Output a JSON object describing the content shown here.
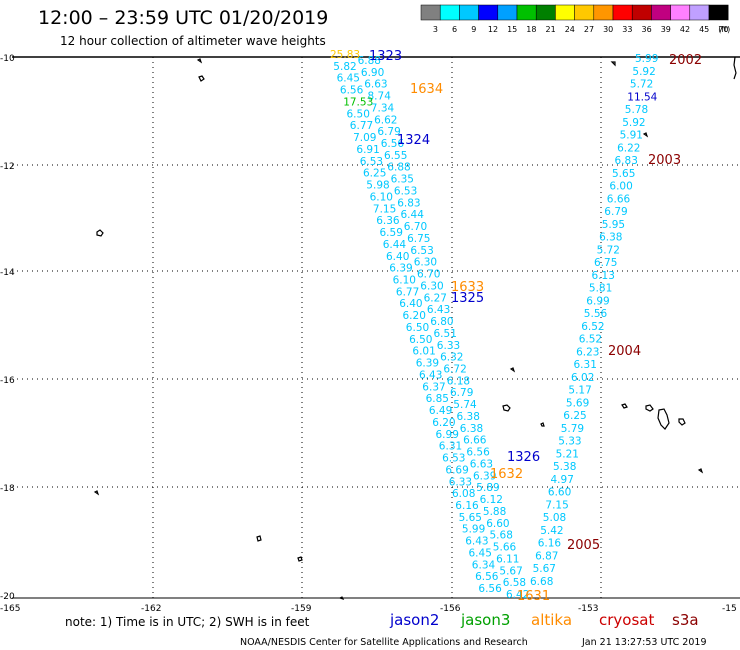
{
  "header": {
    "title": "12:00 – 23:59 UTC 01/20/2019",
    "subtitle": "12 hour collection of altimeter wave heights"
  },
  "colorbar": {
    "unit": "(ft)",
    "labels": [
      "3",
      "6",
      "9",
      "12",
      "15",
      "18",
      "21",
      "24",
      "27",
      "30",
      "33",
      "36",
      "39",
      "42",
      "45",
      "70"
    ],
    "colors": [
      "#808080",
      "#00ffff",
      "#00c8ff",
      "#0000ff",
      "#00a0ff",
      "#00c000",
      "#008000",
      "#ffff00",
      "#ffc800",
      "#ff9600",
      "#ff0000",
      "#c00000",
      "#c00080",
      "#ff80ff",
      "#c0a0ff",
      "#000000"
    ]
  },
  "axes": {
    "x_ticks": [
      "-165",
      "-162",
      "-159",
      "-156",
      "-153",
      "-15"
    ],
    "y_ticks": [
      "-10",
      "-12",
      "-14",
      "-16",
      "-18",
      "-20"
    ]
  },
  "legend": {
    "note": "note:  1) Time is in UTC; 2) SWH is in feet",
    "satellites": [
      {
        "name": "jason2",
        "color": "#0000cc"
      },
      {
        "name": "jason3",
        "color": "#00a000"
      },
      {
        "name": "altika",
        "color": "#ff8c00"
      },
      {
        "name": "cryosat",
        "color": "#cc0000"
      },
      {
        "name": "s3a",
        "color": "#8b0000"
      }
    ]
  },
  "footer": {
    "credit": "NOAA/NESDIS Center for Satellite Applications and Research",
    "timestamp": "Jan 21 13:27:53 UTC 2019"
  },
  "pass_labels": [
    {
      "text": "1323",
      "color": "#0000cc"
    },
    {
      "text": "1634",
      "color": "#ff8c00"
    },
    {
      "text": "1324",
      "color": "#0000cc"
    },
    {
      "text": "1633",
      "color": "#ff8c00"
    },
    {
      "text": "1325",
      "color": "#0000cc"
    },
    {
      "text": "1326",
      "color": "#0000cc"
    },
    {
      "text": "1632",
      "color": "#ff8c00"
    },
    {
      "text": "1631",
      "color": "#ff8c00"
    },
    {
      "text": "2002",
      "color": "#8b0000"
    },
    {
      "text": "2003",
      "color": "#8b0000"
    },
    {
      "text": "2004",
      "color": "#8b0000"
    },
    {
      "text": "2005",
      "color": "#8b0000"
    }
  ],
  "track_a": [
    {
      "v": "25.83",
      "c": "#ffc800"
    },
    {
      "v": "6.88",
      "c": "#00c8ff"
    },
    {
      "v": "5.82",
      "c": "#00c8ff"
    },
    {
      "v": "6.90",
      "c": "#00c8ff"
    },
    {
      "v": "6.45",
      "c": "#00c8ff"
    },
    {
      "v": "6.63",
      "c": "#00c8ff"
    },
    {
      "v": "6.56",
      "c": "#00c8ff"
    },
    {
      "v": "8.74",
      "c": "#00c8ff"
    },
    {
      "v": "17.53",
      "c": "#00c000"
    },
    {
      "v": "7.34",
      "c": "#00c8ff"
    },
    {
      "v": "6.50",
      "c": "#00c8ff"
    },
    {
      "v": "6.62",
      "c": "#00c8ff"
    },
    {
      "v": "6.77",
      "c": "#00c8ff"
    },
    {
      "v": "6.79",
      "c": "#00c8ff"
    },
    {
      "v": "7.09",
      "c": "#00c8ff"
    },
    {
      "v": "6.56",
      "c": "#00c8ff"
    },
    {
      "v": "6.91",
      "c": "#00c8ff"
    },
    {
      "v": "6.55",
      "c": "#00c8ff"
    },
    {
      "v": "6.53",
      "c": "#00c8ff"
    },
    {
      "v": "6.88",
      "c": "#00c8ff"
    },
    {
      "v": "6.25",
      "c": "#00c8ff"
    },
    {
      "v": "6.35",
      "c": "#00c8ff"
    },
    {
      "v": "5.98",
      "c": "#00c8ff"
    },
    {
      "v": "6.53",
      "c": "#00c8ff"
    },
    {
      "v": "6.10",
      "c": "#00c8ff"
    },
    {
      "v": "6.83",
      "c": "#00c8ff"
    },
    {
      "v": "7.15",
      "c": "#00c8ff"
    },
    {
      "v": "6.44",
      "c": "#00c8ff"
    },
    {
      "v": "6.36",
      "c": "#00c8ff"
    },
    {
      "v": "6.70",
      "c": "#00c8ff"
    },
    {
      "v": "6.59",
      "c": "#00c8ff"
    },
    {
      "v": "6.75",
      "c": "#00c8ff"
    },
    {
      "v": "6.44",
      "c": "#00c8ff"
    },
    {
      "v": "6.53",
      "c": "#00c8ff"
    },
    {
      "v": "6.40",
      "c": "#00c8ff"
    },
    {
      "v": "6.30",
      "c": "#00c8ff"
    },
    {
      "v": "6.39",
      "c": "#00c8ff"
    },
    {
      "v": "6.70",
      "c": "#00c8ff"
    },
    {
      "v": "6.10",
      "c": "#00c8ff"
    },
    {
      "v": "6.30",
      "c": "#00c8ff"
    },
    {
      "v": "6.77",
      "c": "#00c8ff"
    },
    {
      "v": "6.27",
      "c": "#00c8ff"
    },
    {
      "v": "6.40",
      "c": "#00c8ff"
    },
    {
      "v": "6.43",
      "c": "#00c8ff"
    },
    {
      "v": "6.20",
      "c": "#00c8ff"
    },
    {
      "v": "6.80",
      "c": "#00c8ff"
    },
    {
      "v": "6.50",
      "c": "#00c8ff"
    },
    {
      "v": "6.51",
      "c": "#00c8ff"
    },
    {
      "v": "6.50",
      "c": "#00c8ff"
    },
    {
      "v": "6.33",
      "c": "#00c8ff"
    },
    {
      "v": "6.01",
      "c": "#00c8ff"
    },
    {
      "v": "6.32",
      "c": "#00c8ff"
    },
    {
      "v": "6.39",
      "c": "#00c8ff"
    },
    {
      "v": "6.72",
      "c": "#00c8ff"
    },
    {
      "v": "6.43",
      "c": "#00c8ff"
    },
    {
      "v": "6.18",
      "c": "#00c8ff"
    },
    {
      "v": "6.37",
      "c": "#00c8ff"
    },
    {
      "v": "6.79",
      "c": "#00c8ff"
    },
    {
      "v": "6.85",
      "c": "#00c8ff"
    },
    {
      "v": "5.74",
      "c": "#00c8ff"
    },
    {
      "v": "6.49",
      "c": "#00c8ff"
    },
    {
      "v": "6.38",
      "c": "#00c8ff"
    },
    {
      "v": "6.20",
      "c": "#00c8ff"
    },
    {
      "v": "6.38",
      "c": "#00c8ff"
    },
    {
      "v": "6.99",
      "c": "#00c8ff"
    },
    {
      "v": "6.66",
      "c": "#00c8ff"
    },
    {
      "v": "6.31",
      "c": "#00c8ff"
    },
    {
      "v": "6.56",
      "c": "#00c8ff"
    },
    {
      "v": "6.53",
      "c": "#00c8ff"
    },
    {
      "v": "6.63",
      "c": "#00c8ff"
    },
    {
      "v": "6.69",
      "c": "#00c8ff"
    },
    {
      "v": "6.39",
      "c": "#00c8ff"
    },
    {
      "v": "6.33",
      "c": "#00c8ff"
    },
    {
      "v": "5.89",
      "c": "#00c8ff"
    },
    {
      "v": "6.08",
      "c": "#00c8ff"
    },
    {
      "v": "6.12",
      "c": "#00c8ff"
    },
    {
      "v": "6.16",
      "c": "#00c8ff"
    },
    {
      "v": "5.88",
      "c": "#00c8ff"
    },
    {
      "v": "5.65",
      "c": "#00c8ff"
    },
    {
      "v": "6.60",
      "c": "#00c8ff"
    },
    {
      "v": "5.99",
      "c": "#00c8ff"
    },
    {
      "v": "5.68",
      "c": "#00c8ff"
    },
    {
      "v": "6.43",
      "c": "#00c8ff"
    },
    {
      "v": "5.66",
      "c": "#00c8ff"
    },
    {
      "v": "6.45",
      "c": "#00c8ff"
    },
    {
      "v": "6.11",
      "c": "#00c8ff"
    },
    {
      "v": "6.34",
      "c": "#00c8ff"
    },
    {
      "v": "5.67",
      "c": "#00c8ff"
    },
    {
      "v": "6.56",
      "c": "#00c8ff"
    },
    {
      "v": "6.58",
      "c": "#00c8ff"
    },
    {
      "v": "6.56",
      "c": "#00c8ff"
    },
    {
      "v": "6.42",
      "c": "#00c8ff"
    }
  ],
  "track_b": [
    {
      "v": "5.99",
      "c": "#00c8ff"
    },
    {
      "v": "5.92",
      "c": "#00c8ff"
    },
    {
      "v": "5.72",
      "c": "#00c8ff"
    },
    {
      "v": "11.54",
      "c": "#0000cc"
    },
    {
      "v": "5.78",
      "c": "#00c8ff"
    },
    {
      "v": "5.92",
      "c": "#00c8ff"
    },
    {
      "v": "5.91",
      "c": "#00c8ff"
    },
    {
      "v": "6.22",
      "c": "#00c8ff"
    },
    {
      "v": "6.83",
      "c": "#00c8ff"
    },
    {
      "v": "5.65",
      "c": "#00c8ff"
    },
    {
      "v": "6.00",
      "c": "#00c8ff"
    },
    {
      "v": "6.66",
      "c": "#00c8ff"
    },
    {
      "v": "6.79",
      "c": "#00c8ff"
    },
    {
      "v": "5.95",
      "c": "#00c8ff"
    },
    {
      "v": "6.38",
      "c": "#00c8ff"
    },
    {
      "v": "5.72",
      "c": "#00c8ff"
    },
    {
      "v": "6.75",
      "c": "#00c8ff"
    },
    {
      "v": "6.13",
      "c": "#00c8ff"
    },
    {
      "v": "5.81",
      "c": "#00c8ff"
    },
    {
      "v": "6.99",
      "c": "#00c8ff"
    },
    {
      "v": "5.56",
      "c": "#00c8ff"
    },
    {
      "v": "6.52",
      "c": "#00c8ff"
    },
    {
      "v": "6.52",
      "c": "#00c8ff"
    },
    {
      "v": "6.23",
      "c": "#00c8ff"
    },
    {
      "v": "6.31",
      "c": "#00c8ff"
    },
    {
      "v": "6.02",
      "c": "#00c8ff"
    },
    {
      "v": "5.17",
      "c": "#00c8ff"
    },
    {
      "v": "5.69",
      "c": "#00c8ff"
    },
    {
      "v": "6.25",
      "c": "#00c8ff"
    },
    {
      "v": "5.79",
      "c": "#00c8ff"
    },
    {
      "v": "5.33",
      "c": "#00c8ff"
    },
    {
      "v": "5.21",
      "c": "#00c8ff"
    },
    {
      "v": "5.38",
      "c": "#00c8ff"
    },
    {
      "v": "4.97",
      "c": "#00c8ff"
    },
    {
      "v": "6.60",
      "c": "#00c8ff"
    },
    {
      "v": "7.15",
      "c": "#00c8ff"
    },
    {
      "v": "5.08",
      "c": "#00c8ff"
    },
    {
      "v": "5.42",
      "c": "#00c8ff"
    },
    {
      "v": "6.16",
      "c": "#00c8ff"
    },
    {
      "v": "6.87",
      "c": "#00c8ff"
    },
    {
      "v": "5.67",
      "c": "#00c8ff"
    },
    {
      "v": "6.68",
      "c": "#00c8ff"
    }
  ]
}
